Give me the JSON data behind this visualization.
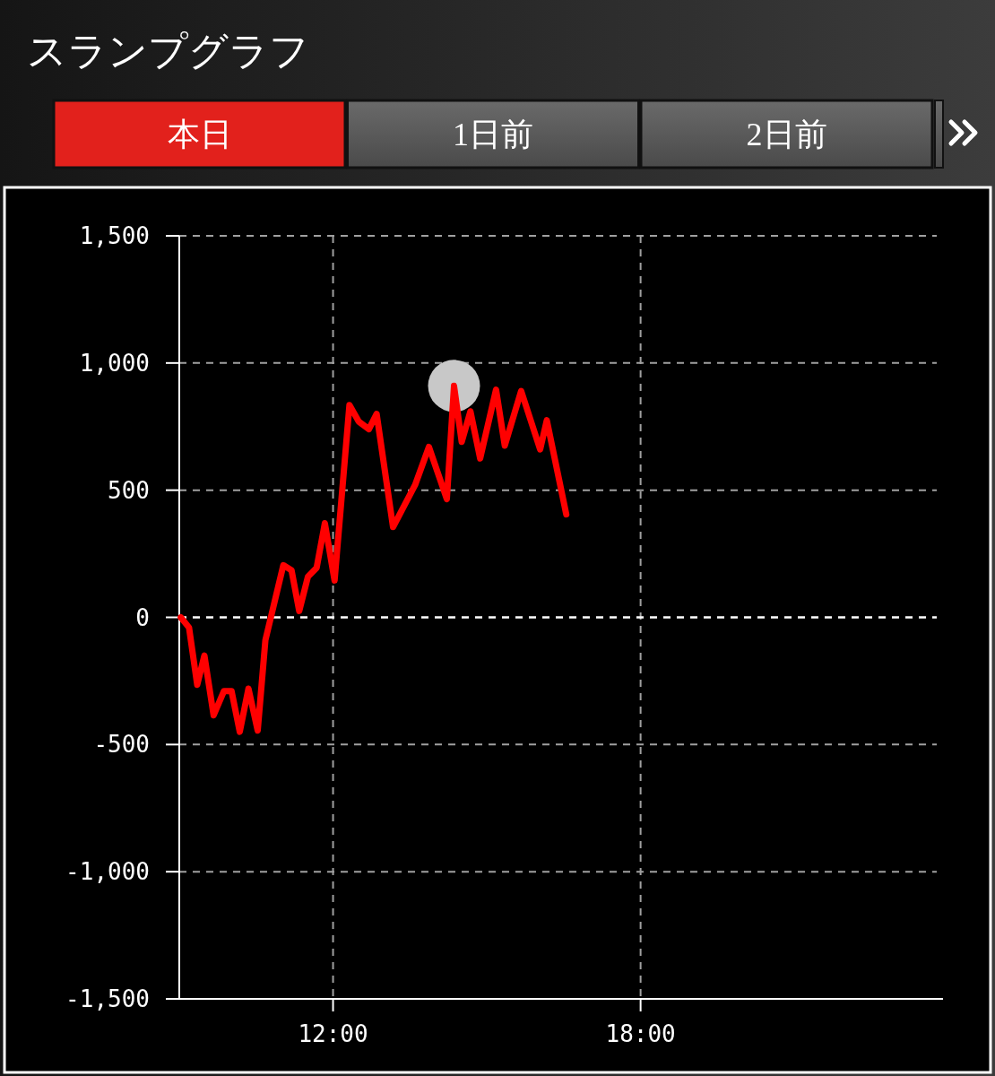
{
  "chart_data": {
    "type": "line",
    "title": "スランプグラフ",
    "annotations": [
      "本日",
      "1日前",
      "2日前"
    ],
    "xlim": [
      9,
      23.9
    ],
    "xticks": [
      {
        "value": 12,
        "label": "12:00"
      },
      {
        "value": 18,
        "label": "18:00"
      }
    ],
    "ylim": [
      -1500,
      1500
    ],
    "yticks": [
      {
        "value": -1500,
        "label": "-1,500"
      },
      {
        "value": -1000,
        "label": "-1,000"
      },
      -500,
      0,
      500,
      {
        "value": 1000,
        "label": "1,000"
      },
      {
        "value": 1500,
        "label": "1,500"
      }
    ],
    "grid": true,
    "ref_lines": [
      {
        "axis": "y",
        "value": 0,
        "color": "#ffffff",
        "line_style": "dashed"
      }
    ],
    "series": [
      {
        "color": "#ff0000",
        "line_style": "solid",
        "x": [
          9.03,
          9.19,
          9.35,
          9.49,
          9.67,
          9.87,
          10.02,
          10.18,
          10.35,
          10.53,
          10.68,
          11.03,
          11.19,
          11.34,
          11.51,
          11.68,
          11.84,
          12.03,
          12.32,
          12.5,
          12.7,
          12.85,
          13.17,
          13.6,
          13.87,
          14.22,
          14.36,
          14.51,
          14.68,
          14.87,
          15.18,
          15.35,
          15.67,
          16.04,
          16.17,
          16.55
        ],
        "values": [
          0,
          -40,
          -265,
          -150,
          -385,
          -290,
          -290,
          -450,
          -280,
          -445,
          -90,
          205,
          185,
          25,
          160,
          195,
          370,
          145,
          835,
          770,
          740,
          800,
          355,
          520,
          670,
          465,
          910,
          690,
          810,
          625,
          895,
          675,
          890,
          660,
          775,
          405
        ]
      },
      {
        "type": "scatter",
        "color": "#c8c8c8",
        "marker": "circle",
        "x": [
          14.36
        ],
        "values": [
          910
        ]
      }
    ]
  }
}
